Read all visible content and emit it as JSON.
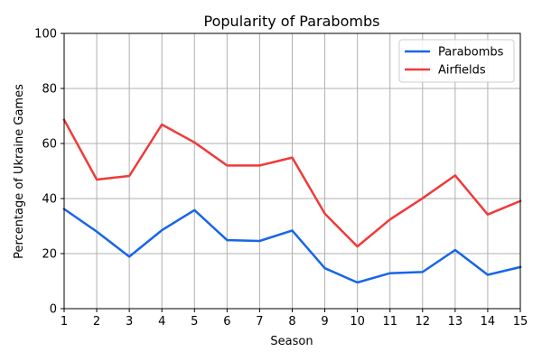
{
  "chart_data": {
    "type": "line",
    "title": "Popularity of Parabombs",
    "xlabel": "Season",
    "ylabel": "Percentage of Ukraine Games",
    "x": [
      1,
      2,
      3,
      4,
      5,
      6,
      7,
      8,
      9,
      10,
      11,
      12,
      13,
      14,
      15
    ],
    "xlim": [
      1,
      15
    ],
    "ylim": [
      0,
      100
    ],
    "yticks": [
      0,
      20,
      40,
      60,
      80,
      100
    ],
    "grid": true,
    "legend_position": "top-right",
    "series": [
      {
        "name": "Parabombs",
        "color": "#1766e8",
        "values": [
          36.2,
          28.0,
          18.9,
          28.5,
          35.8,
          24.9,
          24.6,
          28.4,
          14.7,
          9.5,
          12.9,
          13.3,
          21.3,
          12.3,
          15.1
        ]
      },
      {
        "name": "Airfields",
        "color": "#f03a3a",
        "values": [
          68.6,
          46.9,
          48.2,
          66.9,
          60.4,
          52.0,
          52.0,
          54.9,
          34.5,
          22.6,
          32.4,
          40.1,
          48.4,
          34.2,
          39.1
        ]
      }
    ]
  }
}
